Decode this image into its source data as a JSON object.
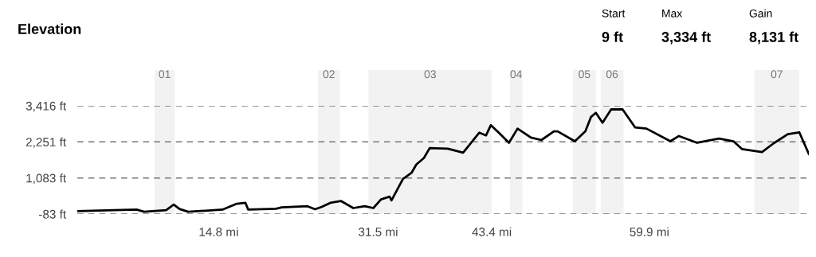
{
  "chart_data": {
    "type": "line",
    "title": "Elevation",
    "annotations": [
      "Start",
      "9 ft",
      "Max",
      "3,334 ft",
      "Gain",
      "8,131 ft"
    ],
    "x": [
      0,
      3.8,
      6.2,
      7.0,
      9.3,
      10.1,
      10.7,
      11.6,
      15.2,
      16.7,
      17.6,
      17.9,
      20.8,
      21.4,
      24.1,
      24.9,
      25.6,
      26.5,
      27.6,
      28.9,
      30.1,
      31.0,
      31.8,
      32.7,
      32.9,
      34.1,
      35.0,
      35.5,
      36.3,
      36.9,
      38.8,
      40.4,
      42.1,
      42.8,
      43.3,
      44.2,
      45.2,
      46.1,
      47.5,
      48.6,
      49.9,
      50.3,
      52.1,
      53.2,
      53.8,
      54.3,
      55.0,
      55.9,
      57.1,
      58.4,
      59.6,
      62.1,
      63.0,
      64.9,
      67.2,
      68.7,
      69.6,
      71.7,
      72.9,
      74.4,
      75.6,
      76.6
    ],
    "series": [
      {
        "color": "#000000",
        "values": [
          9,
          40,
          60,
          -10,
          40,
          220,
          80,
          -10,
          60,
          250,
          280,
          60,
          90,
          130,
          170,
          70,
          150,
          280,
          340,
          110,
          170,
          110,
          390,
          480,
          360,
          1050,
          1250,
          1520,
          1730,
          2050,
          2030,
          1900,
          2550,
          2460,
          2790,
          2530,
          2220,
          2680,
          2390,
          2310,
          2590,
          2590,
          2270,
          2590,
          3060,
          3190,
          2870,
          3300,
          3300,
          2720,
          2680,
          2270,
          2440,
          2220,
          2360,
          2270,
          2020,
          1920,
          2200,
          2500,
          2560,
          1860
        ]
      }
    ],
    "xlim": [
      0,
      76.6
    ],
    "xticks": [
      {
        "value": 14.8,
        "label": "14.8 mi"
      },
      {
        "value": 31.5,
        "label": "31.5 mi"
      },
      {
        "value": 43.4,
        "label": "43.4 mi"
      },
      {
        "value": 59.9,
        "label": "59.9 mi"
      }
    ],
    "ylim": [
      -83,
      3416
    ],
    "yticks": [
      {
        "value": -83,
        "label": "-83 ft"
      },
      {
        "value": 1083,
        "label": "1,083 ft"
      },
      {
        "value": 2251,
        "label": "2,251 ft"
      },
      {
        "value": 3416,
        "label": "3,416 ft"
      }
    ],
    "grid": "y",
    "bands": [
      {
        "axis": "x",
        "from": 8.1,
        "to": 10.2,
        "label": "01",
        "color": "#f2f2f2"
      },
      {
        "axis": "x",
        "from": 25.2,
        "to": 27.5,
        "label": "02",
        "color": "#f2f2f2"
      },
      {
        "axis": "x",
        "from": 30.5,
        "to": 43.4,
        "label": "03",
        "color": "#f2f2f2"
      },
      {
        "axis": "x",
        "from": 45.3,
        "to": 46.6,
        "label": "04",
        "color": "#f2f2f2"
      },
      {
        "axis": "x",
        "from": 51.9,
        "to": 54.3,
        "label": "05",
        "color": "#f2f2f2"
      },
      {
        "axis": "x",
        "from": 54.8,
        "to": 57.2,
        "label": "06",
        "color": "#f2f2f2"
      },
      {
        "axis": "x",
        "from": 70.9,
        "to": 75.6,
        "label": "07",
        "color": "#f2f2f2"
      }
    ]
  }
}
